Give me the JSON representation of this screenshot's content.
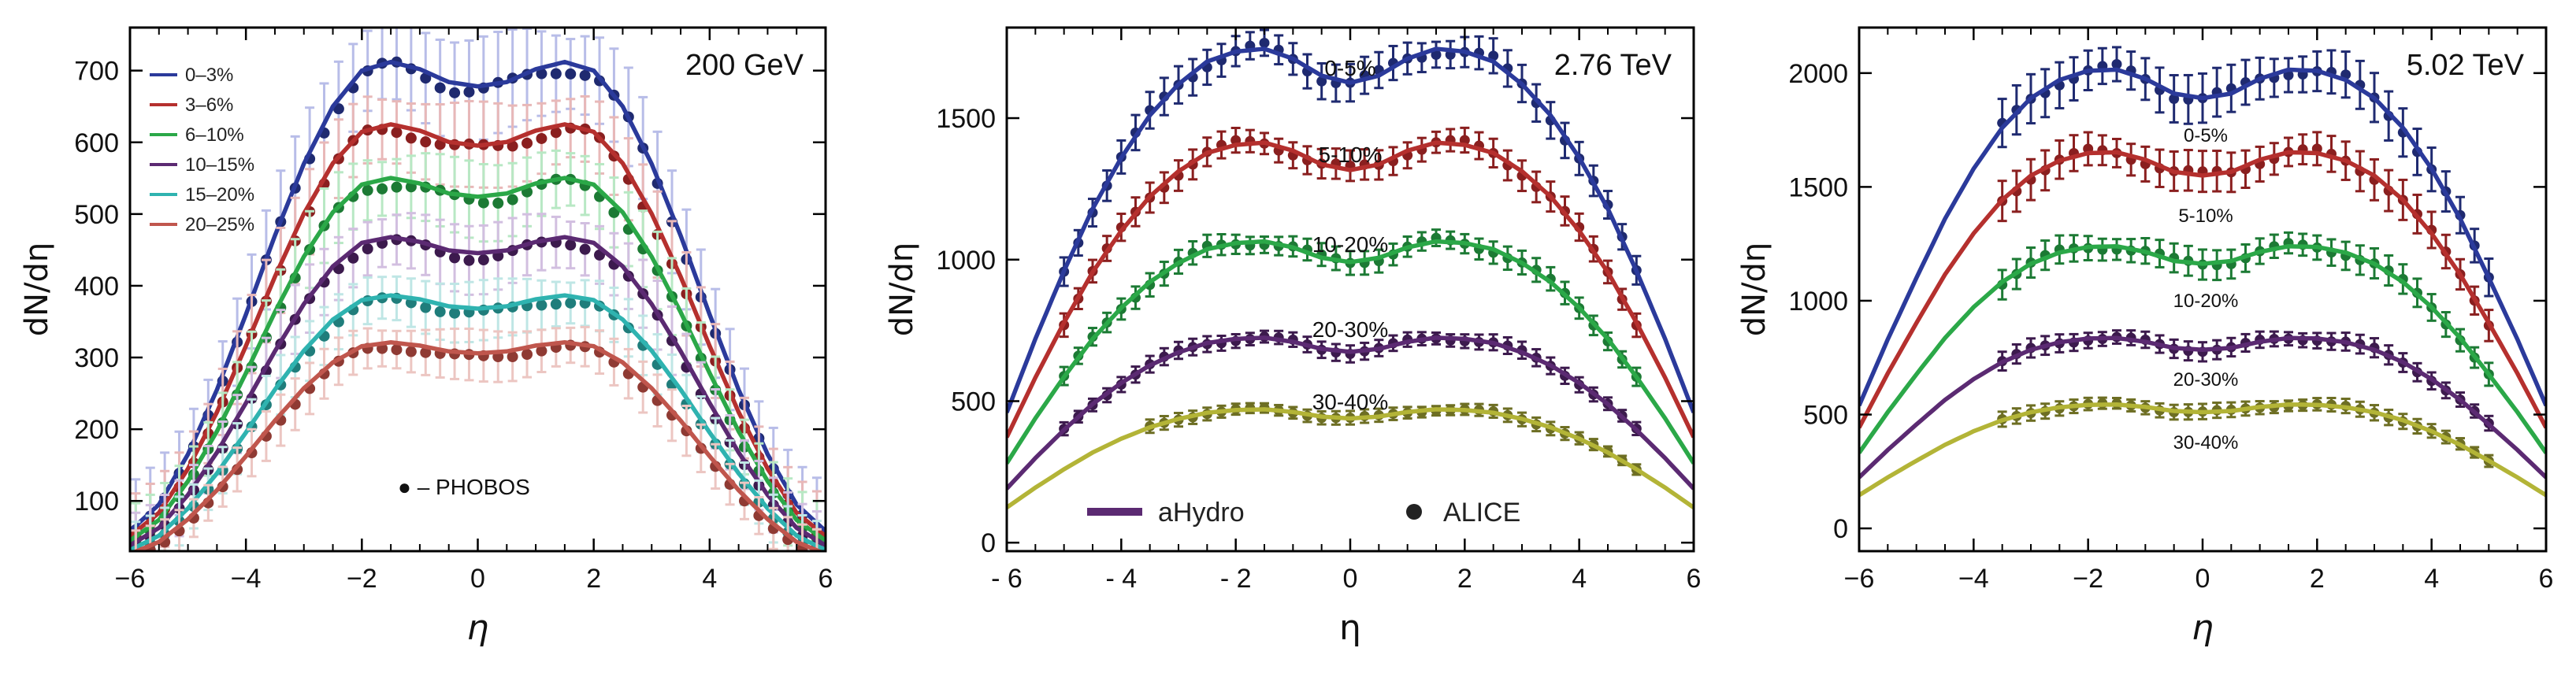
{
  "chart_data": [
    {
      "type": "line",
      "title": "",
      "energy_label": "200 GeV",
      "xlabel": "η",
      "ylabel": "dN/dη",
      "xlim": [
        -6,
        6
      ],
      "ylim": [
        30,
        760
      ],
      "xticks": [
        -6,
        -4,
        -2,
        0,
        2,
        4,
        6
      ],
      "yticks": [
        100,
        200,
        300,
        400,
        500,
        600,
        700
      ],
      "legend": {
        "placement": "top-left"
      },
      "marker_note": "● – PHOBOS",
      "marker_style": "circle",
      "series": [
        {
          "name": "0–3%",
          "color": "#2b3a9b",
          "data_color": "#1f2a70",
          "err_color": "#b8bde8",
          "scale": 1.0,
          "curve": [
            [
              -6,
              58
            ],
            [
              -5.5,
              95
            ],
            [
              -5,
              165
            ],
            [
              -4.5,
              255
            ],
            [
              -4,
              360
            ],
            [
              -3.5,
              470
            ],
            [
              -3,
              570
            ],
            [
              -2.5,
              650
            ],
            [
              -2,
              700
            ],
            [
              -1.5,
              712
            ],
            [
              -1,
              702
            ],
            [
              -0.5,
              684
            ],
            [
              0,
              678
            ],
            [
              0.5,
              684
            ],
            [
              1,
              702
            ],
            [
              1.5,
              712
            ],
            [
              2,
              700
            ],
            [
              2.5,
              650
            ],
            [
              3,
              570
            ],
            [
              3.5,
              470
            ],
            [
              4,
              360
            ],
            [
              4.5,
              255
            ],
            [
              5,
              165
            ],
            [
              5.5,
              95
            ],
            [
              6,
              58
            ]
          ],
          "err": 60
        },
        {
          "name": "3–6%",
          "color": "#b5302e",
          "data_color": "#8a1f1f",
          "err_color": "#e8b8b8",
          "scale": 0.878,
          "err": 50
        },
        {
          "name": "6–10%",
          "color": "#2ba848",
          "data_color": "#1c7a34",
          "err_color": "#b8e8c4",
          "scale": 0.773,
          "err": 45
        },
        {
          "name": "10–15%",
          "color": "#5b2a72",
          "data_color": "#3c1a4d",
          "err_color": "#d2bfe0",
          "scale": 0.657,
          "err": 40
        },
        {
          "name": "15–20%",
          "color": "#2fb3b0",
          "data_color": "#1f7d7b",
          "err_color": "#bfe6e5",
          "scale": 0.543,
          "err": 35
        },
        {
          "name": "20–25%",
          "color": "#c0564d",
          "data_color": "#8f3a33",
          "err_color": "#ecc6c2",
          "scale": 0.451,
          "err": 30
        }
      ]
    },
    {
      "type": "line",
      "title": "",
      "energy_label": "2.76 TeV",
      "xlabel": "η",
      "ylabel": "dN/dη",
      "xlim": [
        -6,
        6
      ],
      "ylim": [
        -30,
        1820
      ],
      "xticks": [
        -6,
        -4,
        -2,
        0,
        2,
        4,
        6
      ],
      "yticks": [
        0,
        500,
        1000,
        1500
      ],
      "legend": {
        "placement": "bottom",
        "model": "aHydro",
        "data": "ALICE"
      },
      "marker_style": "circle",
      "centrality_labels": [
        "0-5%",
        "5-10%",
        "10-20%",
        "20-30%",
        "30-40%"
      ],
      "series": [
        {
          "name": "0-5%",
          "color": "#2b3a9b",
          "data_color": "#1f2a70",
          "scale": 1.0,
          "curve": [
            [
              -6,
              460
            ],
            [
              -5.5,
              720
            ],
            [
              -5,
              960
            ],
            [
              -4.5,
              1180
            ],
            [
              -4,
              1360
            ],
            [
              -3.5,
              1510
            ],
            [
              -3,
              1620
            ],
            [
              -2.5,
              1700
            ],
            [
              -2,
              1735
            ],
            [
              -1.5,
              1745
            ],
            [
              -1,
              1710
            ],
            [
              -0.5,
              1650
            ],
            [
              0,
              1625
            ],
            [
              0.5,
              1650
            ],
            [
              1,
              1710
            ],
            [
              1.5,
              1745
            ],
            [
              2,
              1735
            ],
            [
              2.5,
              1700
            ],
            [
              3,
              1620
            ],
            [
              3.5,
              1510
            ],
            [
              4,
              1360
            ],
            [
              4.5,
              1180
            ],
            [
              5,
              960
            ],
            [
              5.5,
              720
            ],
            [
              6,
              460
            ]
          ],
          "data_range": [
            -5,
            5
          ],
          "err": 55
        },
        {
          "name": "5-10%",
          "color": "#b5302e",
          "data_color": "#8a1f1f",
          "scale": 0.81,
          "data_range": [
            -5,
            5
          ],
          "err": 45
        },
        {
          "name": "10-20%",
          "color": "#2ba848",
          "data_color": "#1c7a34",
          "scale": 0.61,
          "data_range": [
            -5,
            5
          ],
          "err": 35
        },
        {
          "name": "20-30%",
          "color": "#5b2a72",
          "data_color": "#3c1a4d",
          "scale": 0.415,
          "data_range": [
            -5,
            5
          ],
          "err": 25
        },
        {
          "name": "30-40%",
          "color": "#b3b437",
          "data_color": "#6d6e23",
          "scale": 0.27,
          "data_range": [
            -3.5,
            5
          ],
          "err": 20
        }
      ]
    },
    {
      "type": "line",
      "title": "",
      "energy_label": "5.02 TeV",
      "xlabel": "η",
      "ylabel": "dN/dη",
      "xlim": [
        -6,
        6
      ],
      "ylim": [
        -100,
        2200
      ],
      "xticks": [
        -6,
        -4,
        -2,
        0,
        2,
        4,
        6
      ],
      "yticks": [
        0,
        500,
        1000,
        1500,
        2000
      ],
      "marker_style": "circle",
      "centrality_labels": [
        "0-5%",
        "5-10%",
        "10-20%",
        "20-30%",
        "30-40%"
      ],
      "series": [
        {
          "name": "0-5%",
          "color": "#2b3a9b",
          "data_color": "#1f2a70",
          "scale": 1.0,
          "curve": [
            [
              -6,
              540
            ],
            [
              -5.5,
              830
            ],
            [
              -5,
              1100
            ],
            [
              -4.5,
              1360
            ],
            [
              -4,
              1580
            ],
            [
              -3.5,
              1760
            ],
            [
              -3,
              1890
            ],
            [
              -2.5,
              1970
            ],
            [
              -2,
              2010
            ],
            [
              -1.5,
              2015
            ],
            [
              -1,
              1975
            ],
            [
              -0.5,
              1910
            ],
            [
              0,
              1890
            ],
            [
              0.5,
              1910
            ],
            [
              1,
              1975
            ],
            [
              1.5,
              2015
            ],
            [
              2,
              2010
            ],
            [
              2.5,
              1970
            ],
            [
              3,
              1890
            ],
            [
              3.5,
              1760
            ],
            [
              4,
              1580
            ],
            [
              4.5,
              1360
            ],
            [
              5,
              1100
            ],
            [
              5.5,
              830
            ],
            [
              6,
              540
            ]
          ],
          "data_range": [
            -3.5,
            5
          ],
          "err": 90
        },
        {
          "name": "5-10%",
          "color": "#b5302e",
          "data_color": "#8a1f1f",
          "scale": 0.82,
          "data_range": [
            -3.5,
            5
          ],
          "err": 75
        },
        {
          "name": "10-20%",
          "color": "#2ba848",
          "data_color": "#1c7a34",
          "scale": 0.615,
          "data_range": [
            -3.5,
            5
          ],
          "err": 55
        },
        {
          "name": "20-30%",
          "color": "#5b2a72",
          "data_color": "#3c1a4d",
          "scale": 0.415,
          "data_range": [
            -3.5,
            5
          ],
          "err": 35
        },
        {
          "name": "30-40%",
          "color": "#b3b437",
          "data_color": "#6d6e23",
          "scale": 0.27,
          "data_range": [
            -3.5,
            5
          ],
          "err": 28
        }
      ]
    }
  ]
}
